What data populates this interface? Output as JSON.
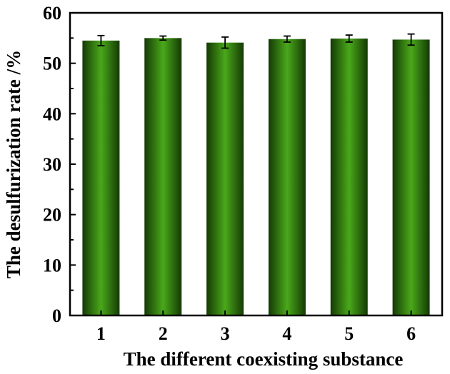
{
  "chart_data": {
    "type": "bar",
    "title": "",
    "xlabel": "The different coexisting substance",
    "ylabel": "The desulfurization rate /%",
    "categories": [
      "1",
      "2",
      "3",
      "4",
      "5",
      "6"
    ],
    "values": [
      54.5,
      55.0,
      54.1,
      54.8,
      54.9,
      54.7
    ],
    "errors": [
      1.0,
      0.4,
      1.1,
      0.6,
      0.7,
      1.1
    ],
    "ylim": [
      0,
      60
    ],
    "yticks": [
      0,
      10,
      20,
      30,
      40,
      50,
      60
    ],
    "grid": false,
    "legend": "none",
    "colors": {
      "bar_center": "#4aa81a",
      "bar_edge": "#143a05",
      "axis": "#000000"
    }
  }
}
